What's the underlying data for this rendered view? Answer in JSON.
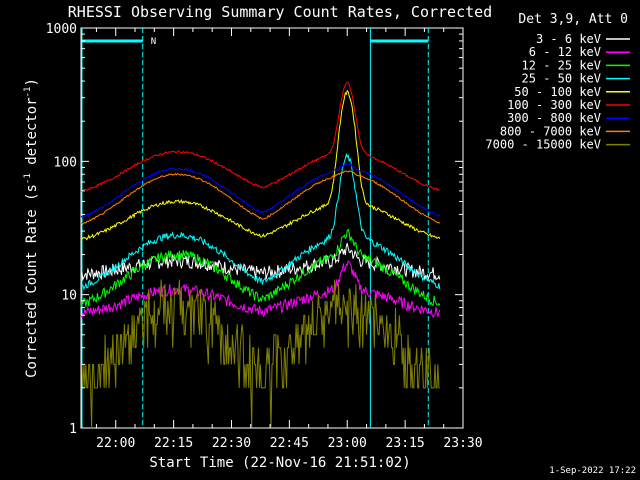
{
  "chart_data": {
    "type": "line",
    "title": "RHESSI Observing Summary Count Rates, Corrected",
    "xlabel": "Start Time (22-Nov-16 21:51:02)",
    "ylabel_main": "Corrected Count Rate (s",
    "ylabel_sup1": "-1",
    "ylabel_mid": " detector",
    "ylabel_sup2": "-1",
    "ylabel_end": ")",
    "y_scale": "log",
    "ylim": [
      1,
      1000
    ],
    "xlim": [
      "21:51",
      "23:30"
    ],
    "x_ticks": [
      "22:00",
      "22:15",
      "22:30",
      "22:45",
      "23:00",
      "23:15",
      "23:30"
    ],
    "y_ticks": [
      "1",
      "10",
      "100",
      "1000"
    ],
    "legend_title": "Det 3,9, Att 0",
    "legend_placement": "right",
    "timestamp": "1-Sep-2022 17:22",
    "night_marker_label": "N",
    "series": [
      {
        "name": "3 - 6 keV",
        "color": "#ffffff",
        "base": 14,
        "peak": 18,
        "flare": 4,
        "noise": 0.12
      },
      {
        "name": "6 - 12 keV",
        "color": "#ff00ff",
        "base": 7,
        "peak": 11,
        "flare": 6,
        "noise": 0.1
      },
      {
        "name": "12 - 25 keV",
        "color": "#00ff00",
        "base": 7.5,
        "peak": 20,
        "flare": 9,
        "noise": 0.09
      },
      {
        "name": "25 - 50 keV",
        "color": "#00ffff",
        "base": 10,
        "peak": 28,
        "flare": 80,
        "noise": 0.06
      },
      {
        "name": "50 - 100 keV",
        "color": "#ffff00",
        "base": 24,
        "peak": 50,
        "flare": 280,
        "noise": 0.03
      },
      {
        "name": "100 - 300 keV",
        "color": "#ff0000",
        "base": 55,
        "peak": 118,
        "flare": 270,
        "noise": 0.02
      },
      {
        "name": "300 - 800 keV",
        "color": "#0000ff",
        "base": 34,
        "peak": 88,
        "flare": 8,
        "noise": 0.02
      },
      {
        "name": "800 - 7000 keV",
        "color": "#ff8000",
        "base": 30,
        "peak": 80,
        "flare": 5,
        "noise": 0.015
      },
      {
        "name": "7000 - 15000 keV",
        "color": "#808000",
        "base": 1.6,
        "peak": 8,
        "flare": 0,
        "noise": 0.25
      }
    ],
    "vertical_markers": [
      "21:51",
      "22:07",
      "23:06",
      "23:21"
    ]
  }
}
